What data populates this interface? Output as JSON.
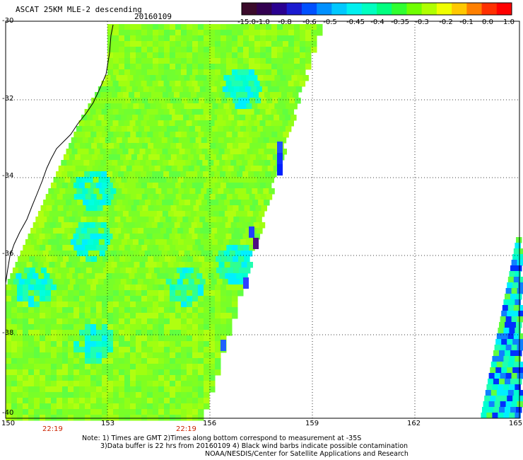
{
  "header": {
    "title": "ASCAT 25KM MLE-2 descending",
    "date": "20160109"
  },
  "colorbar": {
    "colors": [
      "#3a0a2a",
      "#320050",
      "#2a0090",
      "#1a1ad0",
      "#0050ff",
      "#0090ff",
      "#00c8ff",
      "#00f0f0",
      "#00ffc0",
      "#00ff80",
      "#30ff30",
      "#70ff00",
      "#b0ff00",
      "#f0ff00",
      "#ffc800",
      "#ff8000",
      "#ff3000",
      "#ff0000"
    ],
    "ticks": [
      "-15.0",
      "-1.0",
      "-0.8",
      "-0.6",
      "-0.5",
      "-0.45",
      "-0.4",
      "-0.35",
      "-0.3",
      "-0.2",
      "-0.1",
      "0.0",
      "1.0"
    ]
  },
  "axes": {
    "lat_labels": [
      "-30",
      "-32",
      "-34",
      "-36",
      "-38",
      "-40"
    ],
    "lon_labels": [
      "150",
      "153",
      "156",
      "159",
      "162",
      "165"
    ]
  },
  "time_labels": [
    "22:19",
    "22:19"
  ],
  "notes": [
    "Note: 1) Times are GMT 2)Times along bottom correspond to measurement at -35S",
    "3)Data buffer is 22 hrs from 20160109 4) Black wind barbs indicate possible contamination",
    "NOAA/NESDIS/Center for Satellite Applications and Research"
  ],
  "colors": {
    "time_label": "#cc2200",
    "swath_base": "#80ff20"
  }
}
